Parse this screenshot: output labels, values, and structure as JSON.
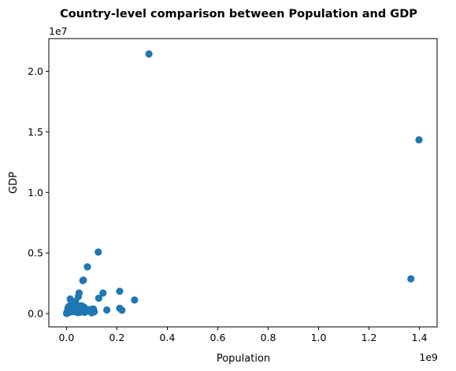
{
  "chart_data": {
    "type": "scatter",
    "title": "Country-level comparison between Population and GDP",
    "xlabel": "Population",
    "ylabel": "GDP",
    "x_offset_label": "1e9",
    "y_offset_label": "1e7",
    "x_scale": 1000000000,
    "y_scale": 10000000,
    "xlim": [
      -0.07,
      1.47
    ],
    "ylim": [
      -0.11,
      2.27
    ],
    "x_ticks": [
      0.0,
      0.2,
      0.4,
      0.6,
      0.8,
      1.0,
      1.2,
      1.4
    ],
    "x_tick_labels": [
      "0.0",
      "0.2",
      "0.4",
      "0.6",
      "0.8",
      "1.0",
      "1.2",
      "1.4"
    ],
    "y_ticks": [
      0.0,
      0.5,
      1.0,
      1.5,
      2.0
    ],
    "y_tick_labels": [
      "0.0",
      "0.5",
      "1.0",
      "1.5",
      "2.0"
    ],
    "grid": false,
    "marker_color": "#1f77b4",
    "series": [
      {
        "x": [
          0.327,
          1.398,
          1.366,
          0.126,
          0.083,
          0.211,
          0.067,
          0.065,
          0.145,
          0.211,
          0.27,
          0.128,
          0.107,
          0.103,
          0.11,
          0.069,
          0.05,
          0.16,
          0.22,
          0.088,
          0.04,
          0.036,
          0.059,
          0.047,
          0.039,
          0.034,
          0.03,
          0.025,
          0.028,
          0.018,
          0.017,
          0.032,
          0.019,
          0.026,
          0.008,
          0.012,
          0.01,
          0.005,
          0.003,
          0.002,
          0.006,
          0.015,
          0.022,
          0.011,
          0.009,
          0.004,
          0.0015,
          0.0008,
          0.007,
          0.013,
          0.045,
          0.054,
          0.063,
          0.072,
          0.086,
          0.095,
          0.1,
          0.015,
          0.02,
          0.024,
          0.003,
          0.001,
          0.002,
          0.005,
          0.0005,
          0.004,
          0.016,
          0.03,
          0.045,
          0.055
        ],
        "y": [
          2.143,
          1.434,
          0.287,
          0.508,
          0.386,
          0.184,
          0.276,
          0.272,
          0.17,
          0.044,
          0.112,
          0.127,
          0.037,
          0.037,
          0.014,
          0.054,
          0.17,
          0.03,
          0.027,
          0.033,
          0.071,
          0.1,
          0.065,
          0.14,
          0.063,
          0.052,
          0.025,
          0.08,
          0.05,
          0.03,
          0.014,
          0.04,
          0.075,
          0.035,
          0.052,
          0.031,
          0.06,
          0.02,
          0.015,
          0.01,
          0.045,
          0.04,
          0.03,
          0.027,
          0.018,
          0.005,
          0.002,
          0.001,
          0.008,
          0.014,
          0.03,
          0.02,
          0.035,
          0.01,
          0.021,
          0.026,
          0.006,
          0.12,
          0.09,
          0.055,
          0.003,
          0.002,
          0.004,
          0.007,
          0.001,
          0.012,
          0.022,
          0.015,
          0.008,
          0.011
        ]
      }
    ]
  }
}
